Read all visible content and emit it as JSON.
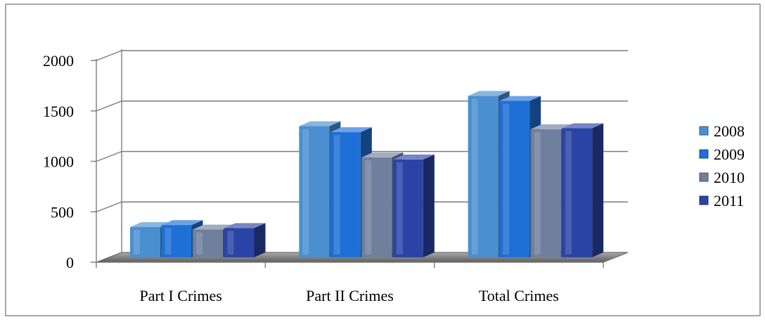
{
  "chart_data": {
    "type": "bar",
    "categories": [
      "Part I Crimes",
      "Part II Crimes",
      "Total Crimes"
    ],
    "series": [
      {
        "name": "2008",
        "values": [
          300,
          1300,
          1600
        ]
      },
      {
        "name": "2009",
        "values": [
          320,
          1240,
          1550
        ]
      },
      {
        "name": "2010",
        "values": [
          275,
          990,
          1270
        ]
      },
      {
        "name": "2011",
        "values": [
          290,
          970,
          1280
        ]
      }
    ],
    "yticks": [
      "0",
      "500",
      "1000",
      "1500",
      "2000"
    ],
    "ylim": [
      0,
      2000
    ],
    "grid": true,
    "three_d": true,
    "legend_position": "right",
    "colors": [
      "#4a8fd0",
      "#1e6fd6",
      "#6f7f9c",
      "#2a44a6"
    ]
  }
}
